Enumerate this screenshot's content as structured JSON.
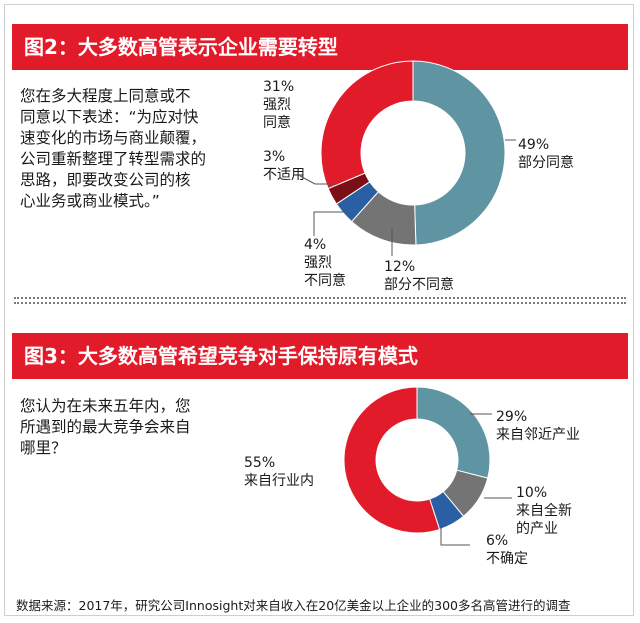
{
  "colors": {
    "banner": "#e21b2b",
    "teal": "#5f94a3",
    "red": "#e21b2b",
    "dark_red": "#7a0f18",
    "blue": "#2a5fa3",
    "gray": "#747474"
  },
  "figure2": {
    "title": "图2：大多数高管表示企业需要转型",
    "question": "您在多大程度上同意或不\n同意以下表述：“为应对快\n速变化的市场与商业颠覆，\n公司重新整理了转型需求的\n思路，即要改变公司的核\n心业务或商业模式。”",
    "labels": {
      "partly_agree": "49%\n部分同意",
      "partly_disagree": "12%\n部分不同意",
      "strongly_disagree": "4%\n强烈\n不同意",
      "not_applicable": "3%\n不适用",
      "strongly_agree": "31%\n强烈\n同意"
    }
  },
  "figure3": {
    "title": "图3：大多数高管希望竞争对手保持原有模式",
    "question": "您认为在未来五年内，您\n所遇到的最大竞争会来自\n哪里？",
    "labels": {
      "adjacent": "29%\n来自邻近产业",
      "new_industry": "10%\n来自全新\n的产业",
      "unsure": "6%\n不确定",
      "in_industry": "55%\n来自行业内"
    }
  },
  "source": "数据来源：2017年，研究公司Innosight对来自收入在20亿美金以上企业的300多名高管进行的调查",
  "chart_data": [
    {
      "type": "pie",
      "title": "图2：大多数高管表示企业需要转型",
      "unit": "%",
      "slices": [
        {
          "label": "部分同意",
          "value": 49,
          "color": "#5f94a3"
        },
        {
          "label": "部分不同意",
          "value": 12,
          "color": "#747474"
        },
        {
          "label": "强烈不同意",
          "value": 4,
          "color": "#2a5fa3"
        },
        {
          "label": "不适用",
          "value": 3,
          "color": "#7a0f18"
        },
        {
          "label": "强烈同意",
          "value": 31,
          "color": "#e21b2b"
        }
      ]
    },
    {
      "type": "pie",
      "title": "图3：大多数高管希望竞争对手保持原有模式",
      "unit": "%",
      "slices": [
        {
          "label": "来自邻近产业",
          "value": 29,
          "color": "#5f94a3"
        },
        {
          "label": "来自全新的产业",
          "value": 10,
          "color": "#747474"
        },
        {
          "label": "不确定",
          "value": 6,
          "color": "#2a5fa3"
        },
        {
          "label": "来自行业内",
          "value": 55,
          "color": "#e21b2b"
        }
      ]
    }
  ]
}
